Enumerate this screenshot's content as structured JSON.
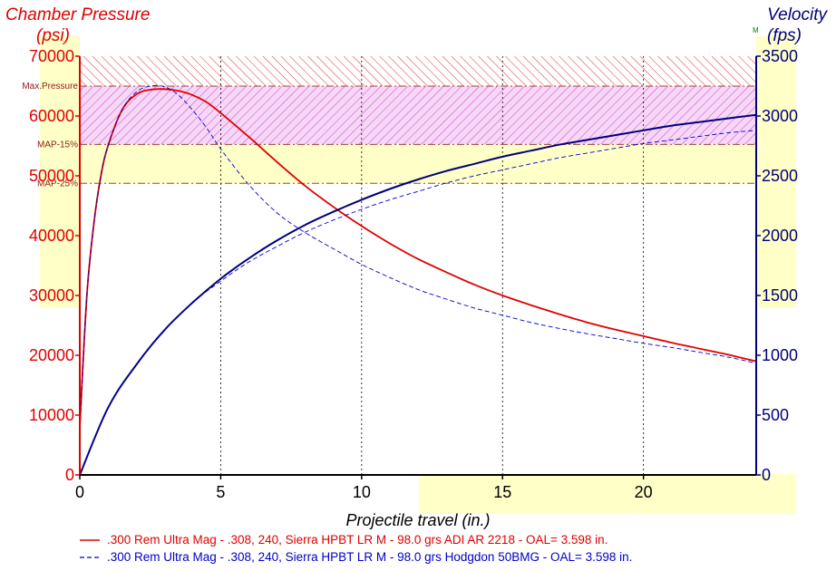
{
  "chart_data": {
    "type": "line",
    "title_left": "Chamber Pressure",
    "unit_left": "(psi)",
    "title_right": "Velocity",
    "unit_right": "(fps)",
    "right_marker": "M",
    "xlabel": "Projectile travel (in.)",
    "xlim": [
      0,
      24
    ],
    "ylim_left": [
      0,
      70000
    ],
    "ylim_right": [
      0,
      3500
    ],
    "x_ticks": [
      "0",
      "5",
      "10",
      "15",
      "20"
    ],
    "y_left_ticks": [
      "0",
      "10000",
      "20000",
      "30000",
      "40000",
      "50000",
      "60000",
      "70000"
    ],
    "y_right_ticks": [
      "0",
      "500",
      "1000",
      "1500",
      "2000",
      "2500",
      "3000",
      "3500"
    ],
    "bands": [
      {
        "label": "Max.Pressure",
        "value": 65000
      },
      {
        "label": "MAP-15%",
        "value": 55250
      },
      {
        "label": "MAP-25%",
        "value": 48750
      }
    ],
    "series": [
      {
        "name": ".300 Rem Ultra Mag - .308, 240, Sierra HPBT LR M - 98.0 grs ADI AR 2218 - OAL= 3.598 in.",
        "color": "#e00000",
        "pressure": {
          "x": [
            0,
            0.25,
            0.5,
            0.75,
            1,
            1.5,
            2,
            2.5,
            3,
            3.5,
            4,
            4.5,
            5,
            6,
            7,
            8,
            9,
            10,
            11,
            12,
            13,
            14,
            15,
            16,
            17,
            18,
            19,
            20,
            21,
            22,
            23,
            24
          ],
          "y": [
            8000,
            30000,
            42000,
            50000,
            55000,
            61000,
            63600,
            64400,
            64500,
            64200,
            63500,
            62300,
            60500,
            56500,
            52300,
            48300,
            44800,
            41600,
            38700,
            36100,
            33900,
            31800,
            30000,
            28400,
            26900,
            25500,
            24300,
            23200,
            22100,
            21100,
            20100,
            19000
          ]
        },
        "velocity": {
          "x": [
            0,
            1,
            2,
            3,
            4,
            5,
            6,
            7,
            8,
            9,
            10,
            11,
            12,
            13,
            14,
            15,
            16,
            17,
            18,
            19,
            20,
            21,
            22,
            23,
            24
          ],
          "y": [
            0,
            560,
            920,
            1210,
            1440,
            1640,
            1810,
            1960,
            2090,
            2200,
            2300,
            2390,
            2470,
            2540,
            2600,
            2660,
            2710,
            2760,
            2800,
            2840,
            2880,
            2920,
            2950,
            2980,
            3010
          ]
        }
      },
      {
        "name": ".300 Rem Ultra Mag - .308, 240, Sierra HPBT LR M - 98.0 grs Hodgdon 50BMG - OAL= 3.598 in.",
        "color": "#0000cc",
        "pressure": {
          "x": [
            0,
            0.25,
            0.5,
            0.75,
            1,
            1.5,
            2,
            2.5,
            3,
            3.5,
            4,
            4.5,
            5,
            6,
            7,
            8,
            9,
            10,
            11,
            12,
            13,
            14,
            15,
            16,
            17,
            18,
            19,
            20,
            21,
            22,
            23,
            24
          ],
          "y": [
            8000,
            30000,
            42000,
            50000,
            55000,
            61000,
            64000,
            65000,
            64900,
            63500,
            61000,
            58000,
            54500,
            48500,
            43800,
            40500,
            37800,
            35200,
            33000,
            31000,
            29400,
            27900,
            26700,
            25500,
            24500,
            23600,
            22800,
            22000,
            21300,
            20500,
            19700,
            18700
          ]
        },
        "velocity": {
          "x": [
            0,
            1,
            2,
            3,
            4,
            5,
            6,
            7,
            8,
            9,
            10,
            11,
            12,
            13,
            14,
            15,
            16,
            17,
            18,
            19,
            20,
            21,
            22,
            23,
            24
          ],
          "y": [
            0,
            560,
            920,
            1210,
            1440,
            1620,
            1780,
            1910,
            2030,
            2130,
            2220,
            2300,
            2370,
            2440,
            2500,
            2550,
            2600,
            2650,
            2690,
            2730,
            2770,
            2800,
            2830,
            2860,
            2880
          ]
        }
      }
    ]
  }
}
